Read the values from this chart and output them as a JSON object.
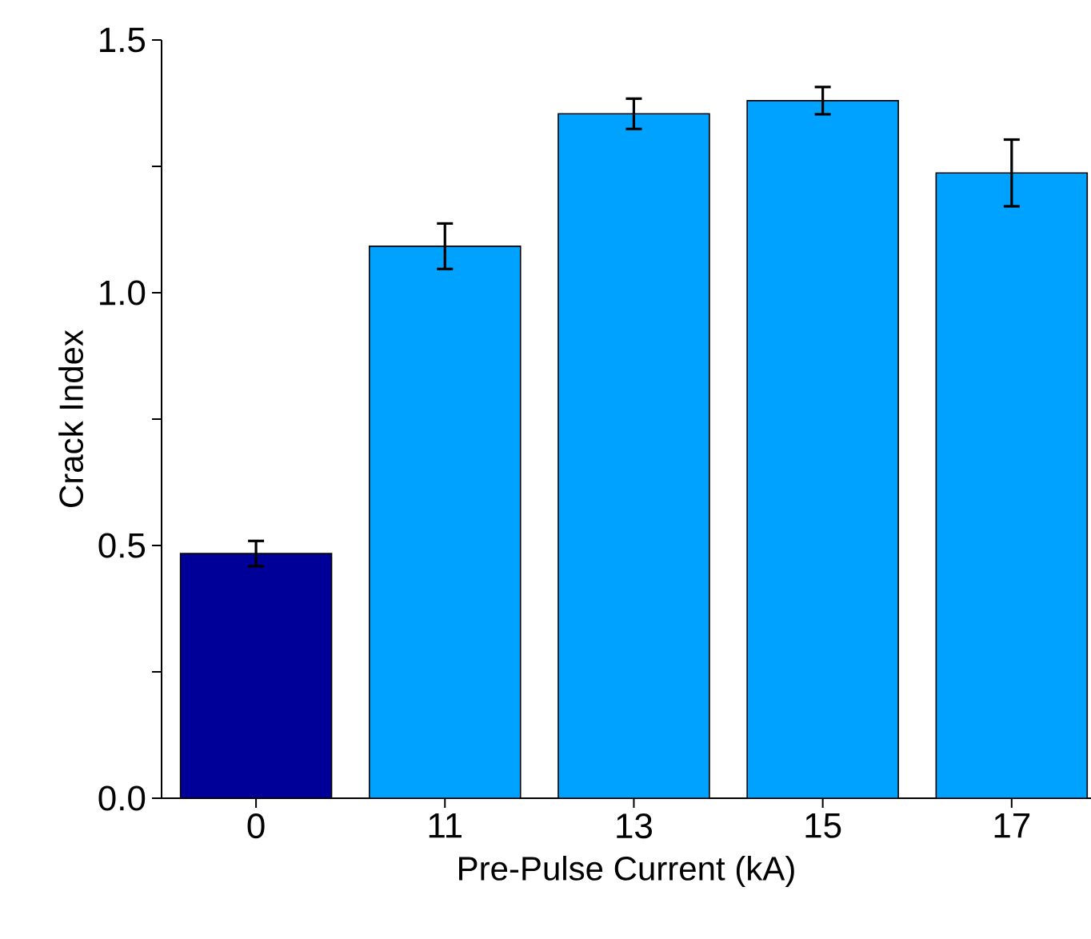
{
  "chart_data": {
    "type": "bar",
    "xlabel": "Pre-Pulse Current (kA)",
    "ylabel": "Crack Index",
    "categories": [
      "0",
      "11",
      "13",
      "15",
      "17"
    ],
    "values": [
      0.484,
      1.092,
      1.354,
      1.38,
      1.237
    ],
    "errors": [
      0.025,
      0.045,
      0.03,
      0.027,
      0.066
    ],
    "colors": [
      "#000099",
      "#00a2ff",
      "#00a2ff",
      "#00a2ff",
      "#00a2ff"
    ],
    "ylim": [
      0,
      1.5
    ],
    "yticks": [
      {
        "value": 0,
        "label": "0.0"
      },
      {
        "value": 0.25,
        "label": null
      },
      0.5,
      {
        "value": 0.75,
        "label": null
      },
      {
        "value": 1,
        "label": "1.0"
      },
      {
        "value": 1.25,
        "label": null
      },
      1.5
    ],
    "grid": false
  }
}
